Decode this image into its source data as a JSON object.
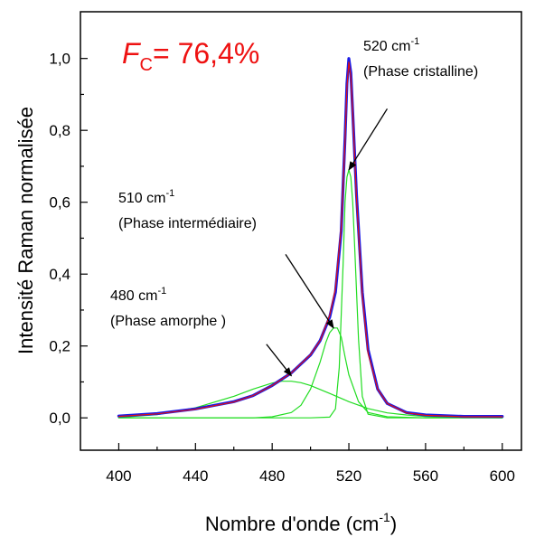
{
  "chart_data": {
    "type": "line",
    "xlabel": "Nombre d'onde (cm",
    "xlabel_sup": "-1",
    "xlabel_tail": ")",
    "ylabel": "Intensité Raman normalisée",
    "xlim": [
      380,
      610
    ],
    "ylim": [
      -0.09,
      1.13
    ],
    "x_ticks": [
      400,
      440,
      480,
      520,
      560,
      600
    ],
    "x_tick_labels": [
      "400",
      "440",
      "480",
      "520",
      "560",
      "600"
    ],
    "y_ticks": [
      0.0,
      0.2,
      0.4,
      0.6,
      0.8,
      1.0
    ],
    "y_tick_labels": [
      "0,0",
      "0,2",
      "0,4",
      "0,6",
      "0,8",
      "1,0"
    ],
    "grid": false,
    "colors": {
      "measured": "#1a1ae6",
      "fit": "#e01010",
      "components": "#22dd22",
      "title": "#ee1111",
      "arrows": "#000000"
    },
    "fc_annotation": {
      "symbol": "F",
      "subscript": "C",
      "value": "= 76,4%"
    },
    "series": [
      {
        "role": "measured",
        "x": [
          400,
          420,
          440,
          460,
          470,
          480,
          490,
          500,
          505,
          510,
          513,
          516,
          518,
          519,
          520,
          521,
          522,
          524,
          527,
          530,
          535,
          540,
          550,
          560,
          580,
          600
        ],
        "values": [
          0.005,
          0.012,
          0.025,
          0.045,
          0.062,
          0.09,
          0.125,
          0.175,
          0.215,
          0.28,
          0.35,
          0.52,
          0.78,
          0.93,
          1.0,
          0.96,
          0.85,
          0.62,
          0.35,
          0.19,
          0.08,
          0.04,
          0.015,
          0.008,
          0.004,
          0.004
        ]
      },
      {
        "role": "fit",
        "x": [
          400,
          420,
          440,
          460,
          470,
          480,
          490,
          500,
          505,
          510,
          513,
          516,
          518,
          519,
          520,
          521,
          522,
          524,
          527,
          530,
          535,
          540,
          550,
          560,
          580,
          600
        ],
        "values": [
          0.004,
          0.011,
          0.024,
          0.044,
          0.062,
          0.09,
          0.125,
          0.176,
          0.215,
          0.285,
          0.36,
          0.53,
          0.77,
          0.92,
          0.99,
          0.95,
          0.85,
          0.61,
          0.34,
          0.18,
          0.08,
          0.04,
          0.014,
          0.007,
          0.003,
          0.003
        ]
      },
      {
        "role": "component",
        "center": 520,
        "x": [
          400,
          500,
          510,
          513,
          515,
          517,
          518,
          519,
          520,
          521,
          522,
          523,
          525,
          527,
          530,
          540,
          600
        ],
        "values": [
          0.0,
          0.0,
          0.002,
          0.025,
          0.14,
          0.43,
          0.6,
          0.67,
          0.69,
          0.67,
          0.6,
          0.48,
          0.22,
          0.06,
          0.01,
          0.0,
          0.0
        ]
      },
      {
        "role": "component",
        "center": 510,
        "x": [
          400,
          470,
          480,
          490,
          495,
          500,
          505,
          508,
          510,
          512,
          514,
          516,
          518,
          520,
          525,
          530,
          540,
          560,
          600
        ],
        "values": [
          0.0,
          0.0,
          0.003,
          0.015,
          0.035,
          0.08,
          0.155,
          0.21,
          0.237,
          0.25,
          0.25,
          0.225,
          0.17,
          0.12,
          0.045,
          0.015,
          0.003,
          0.0,
          0.0
        ]
      },
      {
        "role": "component",
        "center": 480,
        "x": [
          400,
          420,
          440,
          460,
          470,
          480,
          485,
          490,
          495,
          500,
          510,
          520,
          530,
          540,
          550,
          560,
          580,
          600
        ],
        "values": [
          0.001,
          0.009,
          0.028,
          0.06,
          0.08,
          0.097,
          0.102,
          0.102,
          0.098,
          0.09,
          0.068,
          0.045,
          0.026,
          0.014,
          0.008,
          0.004,
          0.001,
          0.0
        ]
      }
    ],
    "annotations": [
      {
        "id": "ann-480",
        "wn": "480 cm",
        "sup": "-1",
        "phase": "(Phase amorphe )",
        "arrow_from": [
          477,
          0.205
        ],
        "arrow_to": [
          490,
          0.117
        ]
      },
      {
        "id": "ann-510",
        "wn": "510 cm",
        "sup": "-1",
        "phase": "(Phase intermédiaire)",
        "arrow_from": [
          487,
          0.455
        ],
        "arrow_to": [
          512,
          0.25
        ]
      },
      {
        "id": "ann-520",
        "wn": "520 cm",
        "sup": "-1",
        "phase": "(Phase cristalline)",
        "arrow_from": [
          540,
          0.86
        ],
        "arrow_to": [
          520,
          0.69
        ]
      }
    ]
  }
}
